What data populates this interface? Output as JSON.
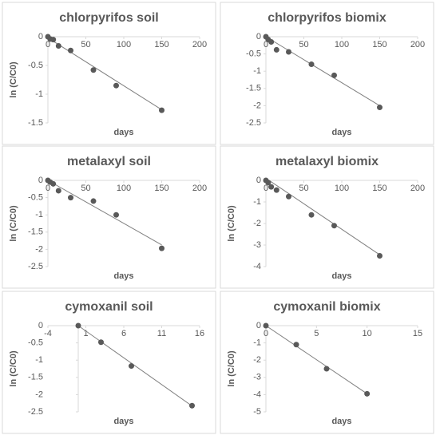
{
  "chart_data": [
    {
      "type": "scatter",
      "title": "chlorpyrifos soil",
      "xlabel": "days",
      "ylabel": "ln (C/C0)",
      "xlim": [
        0,
        200
      ],
      "xticks": [
        0,
        50,
        100,
        150,
        200
      ],
      "ylim": [
        -1.5,
        0
      ],
      "yticks": [
        0,
        -0.5,
        -1,
        -1.5
      ],
      "series": [
        {
          "color": "#595959",
          "x": [
            0,
            3,
            7,
            14,
            30,
            60,
            90,
            150
          ],
          "values": [
            0,
            -0.04,
            -0.05,
            -0.16,
            -0.24,
            -0.58,
            -0.85,
            -1.28
          ]
        }
      ],
      "trendline": {
        "color": "#7f7f7f",
        "x": [
          0,
          150
        ],
        "values": [
          -0.02,
          -1.27
        ]
      }
    },
    {
      "type": "scatter",
      "title": "chlorpyrifos biomix",
      "xlabel": "days",
      "xlim": [
        0,
        200
      ],
      "xticks": [
        0,
        50,
        100,
        150,
        200
      ],
      "ylim": [
        -2.5,
        0
      ],
      "yticks": [
        0,
        -0.5,
        -1,
        -1.5,
        -2,
        -2.5
      ],
      "series": [
        {
          "color": "#595959",
          "x": [
            0,
            3,
            7,
            14,
            30,
            60,
            90,
            150
          ],
          "values": [
            0,
            -0.08,
            -0.15,
            -0.38,
            -0.44,
            -0.8,
            -1.12,
            -2.05
          ]
        }
      ],
      "trendline": {
        "color": "#7f7f7f",
        "x": [
          0,
          150
        ],
        "values": [
          0,
          -2.0
        ]
      }
    },
    {
      "type": "scatter",
      "title": "metalaxyl soil",
      "xlabel": "days",
      "ylabel": "ln (C/C0)",
      "xlim": [
        0,
        200
      ],
      "xticks": [
        0,
        50,
        100,
        150,
        200
      ],
      "ylim": [
        -2.5,
        0
      ],
      "yticks": [
        0,
        -0.5,
        -1,
        -1.5,
        -2,
        -2.5
      ],
      "series": [
        {
          "color": "#595959",
          "x": [
            0,
            3,
            7,
            14,
            30,
            60,
            90,
            150
          ],
          "values": [
            0,
            -0.05,
            -0.1,
            -0.3,
            -0.5,
            -0.6,
            -1,
            -1.97
          ]
        }
      ],
      "trendline": {
        "color": "#7f7f7f",
        "x": [
          0,
          150
        ],
        "values": [
          0,
          -1.87
        ]
      }
    },
    {
      "type": "scatter",
      "title": "metalaxyl biomix",
      "xlabel": "days",
      "ylabel": "ln (C/C0)",
      "xlim": [
        0,
        200
      ],
      "xticks": [
        0,
        50,
        100,
        150,
        200
      ],
      "ylim": [
        -4,
        0
      ],
      "yticks": [
        0,
        -1,
        -2,
        -3,
        -4
      ],
      "series": [
        {
          "color": "#595959",
          "x": [
            0,
            3,
            7,
            14,
            30,
            60,
            90,
            150
          ],
          "values": [
            0,
            -0.1,
            -0.3,
            -0.45,
            -0.75,
            -1.6,
            -2.1,
            -3.5
          ]
        }
      ],
      "trendline": {
        "color": "#7f7f7f",
        "x": [
          0,
          150
        ],
        "values": [
          0.1,
          -3.45
        ]
      }
    },
    {
      "type": "scatter",
      "title": "cymoxanil soil",
      "xlabel": "days",
      "ylabel": "ln (C/C0)",
      "xlim": [
        -4,
        16
      ],
      "xticks": [
        -4,
        1,
        6,
        11,
        16
      ],
      "ylim": [
        -2.5,
        0
      ],
      "yticks": [
        0,
        -0.5,
        -1,
        -1.5,
        -2,
        -2.5
      ],
      "series": [
        {
          "color": "#595959",
          "x": [
            0,
            3,
            7,
            15
          ],
          "values": [
            0,
            -0.48,
            -1.17,
            -2.32
          ]
        }
      ],
      "trendline": {
        "color": "#7f7f7f",
        "x": [
          0,
          15
        ],
        "values": [
          0,
          -2.33
        ]
      }
    },
    {
      "type": "scatter",
      "title": "cymoxanil biomix",
      "xlabel": "days",
      "ylabel": "ln (C/C0)",
      "xlim": [
        0,
        15
      ],
      "xticks": [
        0,
        5,
        10,
        15
      ],
      "ylim": [
        -5,
        0
      ],
      "yticks": [
        0,
        -1,
        -2,
        -3,
        -4,
        -5
      ],
      "series": [
        {
          "color": "#595959",
          "x": [
            0,
            3,
            6,
            10
          ],
          "values": [
            0,
            -1.1,
            -2.5,
            -3.95
          ]
        }
      ],
      "trendline": {
        "color": "#7f7f7f",
        "x": [
          0,
          10
        ],
        "values": [
          0,
          -3.95
        ]
      }
    }
  ]
}
